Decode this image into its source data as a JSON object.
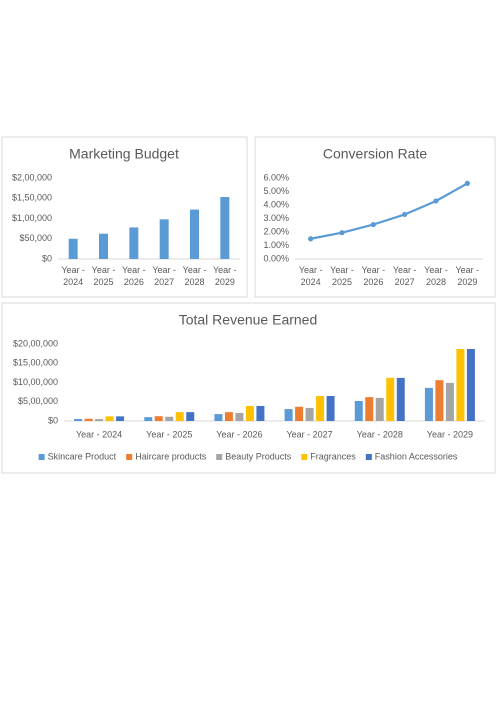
{
  "chart_data": [
    {
      "type": "bar",
      "title": "Marketing Budget",
      "categories": [
        "Year - 2024",
        "Year - 2025",
        "Year - 2026",
        "Year - 2027",
        "Year - 2028",
        "Year - 2029"
      ],
      "values": [
        50000,
        62500,
        78000,
        98000,
        122000,
        153000
      ],
      "color": "#5b9bd5",
      "ylim": [
        0,
        200000
      ],
      "yticks": [
        {
          "value": 0,
          "label": "$0"
        },
        {
          "value": 50000,
          "label": "$50,000"
        },
        {
          "value": 100000,
          "label": "$1,00,000"
        },
        {
          "value": 150000,
          "label": "$1,50,000"
        },
        {
          "value": 200000,
          "label": "$2,00,000"
        }
      ],
      "grid": false
    },
    {
      "type": "line",
      "title": "Conversion Rate",
      "categories": [
        "Year - 2024",
        "Year - 2025",
        "Year - 2026",
        "Year - 2027",
        "Year - 2028",
        "Year - 2029"
      ],
      "values": [
        1.5,
        1.95,
        2.55,
        3.3,
        4.3,
        5.6
      ],
      "color": "#5b9bd5",
      "ylim": [
        0,
        6
      ],
      "yticks": [
        {
          "value": 0,
          "label": "0.00%"
        },
        {
          "value": 1,
          "label": "1.00%"
        },
        {
          "value": 2,
          "label": "2.00%"
        },
        {
          "value": 3,
          "label": "3.00%"
        },
        {
          "value": 4,
          "label": "4.00%"
        },
        {
          "value": 5,
          "label": "5.00%"
        },
        {
          "value": 6,
          "label": "6.00%"
        }
      ],
      "grid": false
    },
    {
      "type": "grouped-bar",
      "title": "Total Revenue Earned",
      "categories": [
        "Year - 2024",
        "Year - 2025",
        "Year - 2026",
        "Year - 2027",
        "Year - 2028",
        "Year - 2029"
      ],
      "series": [
        {
          "name": "Skincare Product",
          "color": "#5b9bd5",
          "values": [
            52000,
            100000,
            180000,
            310000,
            520000,
            860000
          ]
        },
        {
          "name": "Haircare products",
          "color": "#ed7d31",
          "values": [
            60000,
            125000,
            230000,
            370000,
            620000,
            1060000
          ]
        },
        {
          "name": "Beauty Products",
          "color": "#a5a5a5",
          "values": [
            50000,
            110000,
            210000,
            340000,
            600000,
            990000
          ]
        },
        {
          "name": "Fragrances",
          "color": "#ffc000",
          "values": [
            120000,
            230000,
            390000,
            650000,
            1120000,
            1870000
          ]
        },
        {
          "name": "Fashion Accessories",
          "color": "#4472c4",
          "values": [
            120000,
            230000,
            390000,
            650000,
            1120000,
            1870000
          ]
        }
      ],
      "ylim": [
        0,
        2000000
      ],
      "yticks": [
        {
          "value": 0,
          "label": "$0"
        },
        {
          "value": 500000,
          "label": "$5,00,000"
        },
        {
          "value": 1000000,
          "label": "$10,00,000"
        },
        {
          "value": 1500000,
          "label": "$15,00,000"
        },
        {
          "value": 2000000,
          "label": "$20,00,000"
        }
      ],
      "grid": false,
      "legend": "bottom"
    }
  ]
}
